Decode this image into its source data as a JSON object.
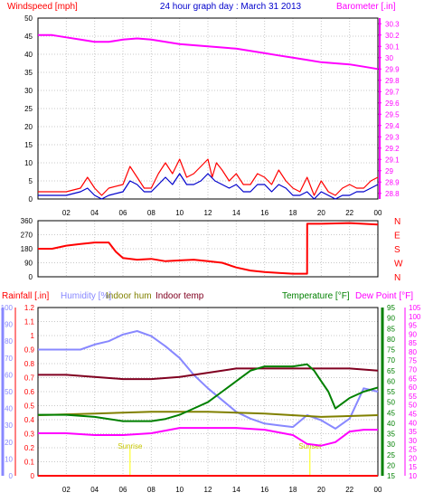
{
  "title": "24 hour graph day : March 31 2013",
  "colors": {
    "wind": "#ff0000",
    "wind_avg": "#0000cc",
    "barometer": "#ff00ff",
    "title": "#0000cc",
    "frame": "#000000",
    "grid": "#c8c8c8",
    "rain": "#ff0000",
    "humidity": "#8888ff",
    "indoor_hum": "#808000",
    "indoor_temp": "#800020",
    "temperature": "#008000",
    "dew_point": "#ff00ff",
    "sun": "#ffff00"
  },
  "x_ticks": [
    "02",
    "04",
    "06",
    "08",
    "10",
    "12",
    "14",
    "16",
    "18",
    "20",
    "22",
    "00"
  ],
  "chart_data": [
    {
      "type": "line",
      "name": "wind-barometer",
      "ylabel": "Windspeed [mph]",
      "y2label": "Barometer [.in]",
      "ylim": [
        0,
        50
      ],
      "y2lim": [
        28.75,
        30.35
      ],
      "y_ticks": [
        "0",
        "5",
        "10",
        "15",
        "20",
        "25",
        "30",
        "35",
        "40",
        "45",
        "50"
      ],
      "y2_ticks": [
        "28.8",
        "28.9",
        "29",
        "29.1",
        "29.2",
        "29.3",
        "29.4",
        "29.5",
        "29.6",
        "29.7",
        "29.8",
        "29.9",
        "30",
        "30.1",
        "30.2",
        "30.3"
      ],
      "series": [
        {
          "name": "Windspeed",
          "axis": "left",
          "x": [
            0,
            2,
            3,
            3.5,
            4,
            4.5,
            5,
            6,
            6.5,
            7,
            7.5,
            8,
            8.5,
            9,
            9.5,
            10,
            10.5,
            11,
            11.5,
            12,
            12.3,
            12.6,
            13,
            13.5,
            14,
            14.5,
            15,
            15.5,
            16,
            16.5,
            17,
            17.5,
            18,
            18.5,
            19,
            19.5,
            20,
            20.5,
            21,
            21.5,
            22,
            22.5,
            23,
            23.5,
            24
          ],
          "y": [
            2,
            2,
            3,
            6,
            3,
            1,
            3,
            4,
            9,
            6,
            3,
            3,
            7,
            10,
            7,
            11,
            6,
            7,
            9,
            11,
            6,
            10,
            8,
            5,
            7,
            4,
            4,
            7,
            6,
            4,
            8,
            5,
            3,
            2,
            6,
            1,
            5,
            2,
            1,
            3,
            4,
            3,
            3,
            5,
            6
          ]
        },
        {
          "name": "Wind avg",
          "axis": "left",
          "x": [
            0,
            2,
            3,
            3.5,
            4,
            4.5,
            5,
            6,
            6.5,
            7,
            7.5,
            8,
            8.5,
            9,
            9.5,
            10,
            10.5,
            11,
            11.5,
            12,
            12.5,
            13,
            13.5,
            14,
            14.5,
            15,
            15.5,
            16,
            16.5,
            17,
            17.5,
            18,
            18.5,
            19,
            19.5,
            20,
            20.5,
            21,
            21.5,
            22,
            22.5,
            23,
            23.5,
            24
          ],
          "y": [
            1,
            1,
            2,
            3,
            1,
            0,
            1,
            2,
            5,
            4,
            2,
            2,
            4,
            6,
            4,
            7,
            4,
            4,
            5,
            7,
            5,
            4,
            3,
            4,
            2,
            2,
            4,
            4,
            2,
            4,
            3,
            1,
            1,
            2,
            0,
            2,
            1,
            0,
            1,
            1,
            2,
            2,
            3,
            4
          ]
        },
        {
          "name": "Barometer",
          "axis": "right",
          "x": [
            0,
            1,
            2,
            3,
            4,
            5,
            6,
            7,
            8,
            9,
            10,
            11,
            12,
            13,
            14,
            15,
            16,
            17,
            18,
            19,
            20,
            21,
            22,
            23,
            24
          ],
          "y": [
            30.2,
            30.2,
            30.18,
            30.16,
            30.14,
            30.14,
            30.16,
            30.17,
            30.16,
            30.14,
            30.12,
            30.11,
            30.1,
            30.09,
            30.08,
            30.06,
            30.04,
            30.02,
            30.0,
            29.98,
            29.96,
            29.95,
            29.94,
            29.92,
            29.9
          ]
        }
      ]
    },
    {
      "type": "line",
      "name": "wind-direction",
      "ylim": [
        0,
        360
      ],
      "y_ticks": [
        "0",
        "90",
        "180",
        "270",
        "360"
      ],
      "y2_ticks": [
        "N",
        "W",
        "S",
        "E",
        "N"
      ],
      "series": [
        {
          "name": "Wind direction",
          "x": [
            0,
            1,
            2,
            3,
            4,
            5,
            5.5,
            6,
            7,
            8,
            9,
            10,
            11,
            12,
            13,
            14,
            15,
            16,
            17,
            18,
            19,
            19.01,
            20,
            22,
            24
          ],
          "y": [
            180,
            180,
            200,
            210,
            220,
            220,
            160,
            120,
            110,
            115,
            100,
            105,
            110,
            100,
            90,
            60,
            40,
            30,
            25,
            20,
            20,
            340,
            340,
            345,
            335
          ]
        }
      ]
    },
    {
      "type": "line",
      "name": "temp-humidity-rain",
      "labels": [
        "Rainfall [.in]",
        "Humidity [%]",
        "Indoor hum",
        "Indoor temp",
        "Temperature [°F]",
        "Dew Point [°F]"
      ],
      "rain_ticks": [
        "0",
        "0.1",
        "0.2",
        "0.3",
        "0.4",
        "0.5",
        "0.6",
        "0.7",
        "0.8",
        "0.9",
        "1",
        "1.1",
        "1.2"
      ],
      "hum_ticks": [
        "0",
        "10",
        "20",
        "30",
        "40",
        "50",
        "60",
        "70",
        "80",
        "90",
        "100"
      ],
      "temp_ticks": [
        "15",
        "20",
        "25",
        "30",
        "35",
        "40",
        "45",
        "50",
        "55",
        "60",
        "65",
        "70",
        "75",
        "80",
        "85",
        "90",
        "95"
      ],
      "dew_ticks": [
        "10",
        "15",
        "20",
        "25",
        "30",
        "35",
        "40",
        "45",
        "50",
        "55",
        "60",
        "65",
        "70",
        "75",
        "80",
        "85",
        "90",
        "95",
        "100",
        "105"
      ],
      "sun_labels": [
        "Sunrise",
        "Sunset"
      ],
      "sun_x": [
        6.5,
        19.2
      ],
      "series": [
        {
          "name": "Humidity",
          "axis": "hum",
          "x": [
            0,
            1,
            2,
            3,
            4,
            5,
            6,
            7,
            8,
            9,
            10,
            11,
            12,
            13,
            14,
            15,
            16,
            17,
            18,
            19,
            20,
            21,
            22,
            23,
            24
          ],
          "y": [
            75,
            75,
            75,
            75,
            78,
            80,
            84,
            86,
            83,
            77,
            70,
            60,
            52,
            45,
            38,
            34,
            31,
            30,
            29,
            36,
            33,
            28,
            34,
            52,
            50
          ]
        },
        {
          "name": "Indoor hum",
          "axis": "hum",
          "x": [
            0,
            4,
            8,
            12,
            16,
            20,
            24
          ],
          "y": [
            36,
            37,
            38,
            38,
            37,
            35,
            36
          ]
        },
        {
          "name": "Indoor temp",
          "axis": "temp",
          "x": [
            0,
            2,
            4,
            6,
            8,
            10,
            12,
            14,
            16,
            18,
            20,
            22,
            24
          ],
          "y": [
            63,
            63,
            62,
            61,
            61,
            62,
            64,
            66,
            66,
            66,
            66,
            66,
            65
          ]
        },
        {
          "name": "Temperature",
          "axis": "temp",
          "x": [
            0,
            2,
            4,
            5,
            6,
            7,
            8,
            9,
            10,
            11,
            12,
            13,
            14,
            15,
            16,
            17,
            18,
            19,
            19.5,
            20,
            20.5,
            21,
            22,
            23,
            24
          ],
          "y": [
            44,
            44,
            43,
            42,
            41,
            41,
            41,
            42,
            44,
            47,
            50,
            55,
            60,
            65,
            67,
            67,
            67,
            68,
            65,
            60,
            55,
            47,
            52,
            55,
            57
          ]
        },
        {
          "name": "Dew Point",
          "axis": "dew",
          "x": [
            0,
            2,
            4,
            6,
            8,
            10,
            12,
            14,
            16,
            18,
            19,
            20,
            21,
            22,
            23,
            24
          ],
          "y": [
            34,
            34,
            33,
            33,
            34,
            37,
            37,
            37,
            36,
            33,
            28,
            27,
            29,
            35,
            36,
            36
          ]
        }
      ]
    }
  ]
}
